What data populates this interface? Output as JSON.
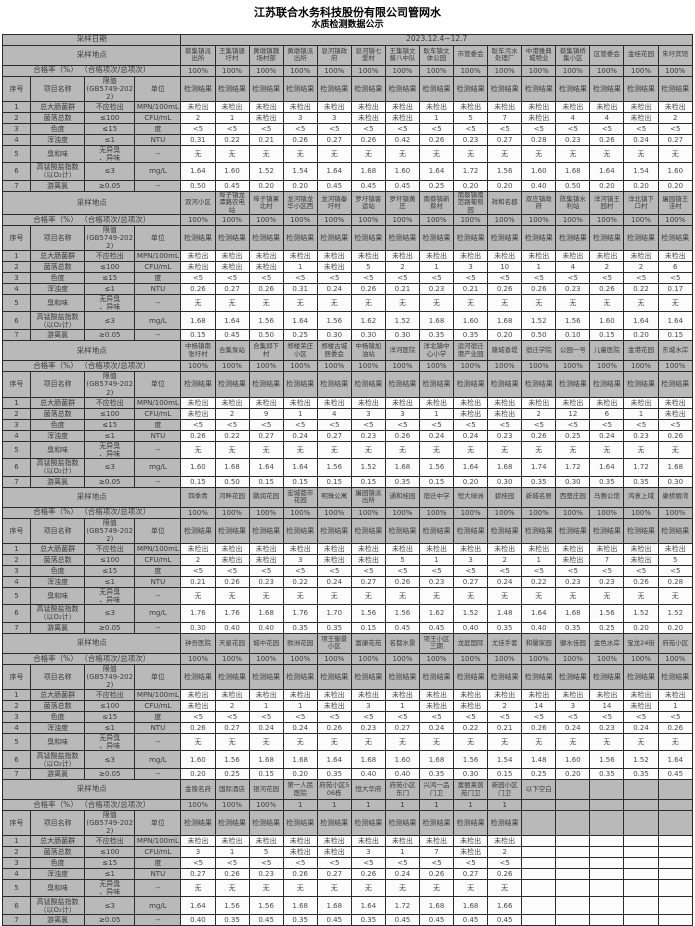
{
  "title_line1": "江苏联合水务科技股份有限公司管网水",
  "title_line2": "水质检测数据公示",
  "labels": {
    "sample_date": "采样日期",
    "sample_date_value": "2023.12.4~12.7",
    "sample_location": "采样地点",
    "pass_rate": "合格率（%） （合格项次/总项次）",
    "col_no": "序号",
    "col_item": "项目名称",
    "col_limit": "限值\n(GB5749-2022)",
    "col_unit": "单位",
    "result_header": "检测结果"
  },
  "parameters": [
    {
      "no": "1",
      "name": "总大肠菌群",
      "limit": "不应检出",
      "unit": "MPN/100mL"
    },
    {
      "no": "2",
      "name": "菌落总数",
      "limit": "≤100",
      "unit": "CFU/mL"
    },
    {
      "no": "3",
      "name": "色度",
      "limit": "≤15",
      "unit": "度"
    },
    {
      "no": "4",
      "name": "浑浊度",
      "limit": "≤1",
      "unit": "NTU"
    },
    {
      "no": "5",
      "name": "臭和味",
      "limit": "无异臭\n、异味",
      "unit": "--"
    },
    {
      "no": "6",
      "name": "高锰酸盐指数\n（以O₂计）",
      "limit": "≤3",
      "unit": "mg/L"
    },
    {
      "no": "7",
      "name": "游离氯",
      "limit": "≥0.05",
      "unit": "--"
    }
  ],
  "blocks": [
    {
      "locations": [
        "蔡集镇派出所",
        "王集镇唐圩村",
        "黄墩镇魏场村部",
        "黄墩镇派出所",
        "皂河镇政府",
        "皂河镇七堡村",
        "王集镇文督八中队",
        "耿车镇文体公园",
        "市管委会",
        "耿车污水处理厂",
        "中港雅典城物业",
        "蔡集镇桥集小区",
        "区管委会",
        "金桂花园",
        "朱圩宾馆"
      ],
      "pass_rates": [
        "100%",
        "100%",
        "100%",
        "100%",
        "100%",
        "100%",
        "100%",
        "100%",
        "100%",
        "100%",
        "100%",
        "100%",
        "100%",
        "100%",
        "100%"
      ],
      "result_headers": [
        "检测结果",
        "检测结果",
        "检测结果",
        "检测结果",
        "检测结果",
        "检测结果",
        "检测结果",
        "检测结果",
        "检测结果",
        "检测结果",
        "检测结果",
        "检测结果",
        "检测结果",
        "检测结果",
        "检测结果"
      ],
      "rows": [
        [
          "未检出",
          "未检出",
          "未检出",
          "未检出",
          "未检出",
          "未检出",
          "未检出",
          "未检出",
          "未检出",
          "未检出",
          "未检出",
          "未检出",
          "未检出",
          "未检出",
          "未检出"
        ],
        [
          "2",
          "1",
          "未检出",
          "3",
          "3",
          "未检出",
          "未检出",
          "1",
          "5",
          "7",
          "未检出",
          "4",
          "4",
          "未检出",
          "2"
        ],
        [
          "<5",
          "<5",
          "<5",
          "<5",
          "<5",
          "<5",
          "<5",
          "<5",
          "<5",
          "<5",
          "<5",
          "<5",
          "<5",
          "<5",
          "<5"
        ],
        [
          "0.31",
          "0.22",
          "0.21",
          "0.26",
          "0.27",
          "0.26",
          "0.42",
          "0.26",
          "0.23",
          "0.27",
          "0.28",
          "0.23",
          "0.26",
          "0.24",
          "0.27"
        ],
        [
          "无",
          "无",
          "无",
          "无",
          "无",
          "无",
          "无",
          "无",
          "无",
          "无",
          "无",
          "无",
          "无",
          "无",
          "无"
        ],
        [
          "1.64",
          "1.60",
          "1.52",
          "1.54",
          "1.64",
          "1.68",
          "1.60",
          "1.64",
          "1.72",
          "1.56",
          "1.60",
          "1.68",
          "1.64",
          "1.54",
          "1.60"
        ],
        [
          "0.50",
          "0.45",
          "0.20",
          "0.20",
          "0.45",
          "0.45",
          "0.45",
          "0.25",
          "0.20",
          "0.20",
          "0.40",
          "0.50",
          "0.20",
          "0.20",
          "0.20"
        ]
      ]
    },
    {
      "locations": [
        "双河小区",
        "埠子镇龙潭路农电站",
        "埠子镇果北村",
        "龙河镇龙华小区西",
        "龙河镇秦圩村",
        "罗圩镇客运站",
        "罗圩镇黄庄",
        "南蔡镇新蔡村",
        "南蔡镇南范路葡萄园",
        "祥和名郡",
        "双庄镇政府",
        "陈集镇水利站",
        "洋河镇王园村",
        "洋北镇下口村",
        "屠园镇王洼村"
      ],
      "pass_rates": [
        "100%",
        "100%",
        "100%",
        "100%",
        "100%",
        "100%",
        "100%",
        "100%",
        "100%",
        "100%",
        "100%",
        "100%",
        "100%",
        "100%",
        "100%"
      ],
      "result_headers": [
        "检测结果",
        "检测结果",
        "检测结果",
        "检测结果",
        "检测结果",
        "检测结果",
        "检测结果",
        "检测结果",
        "检测结果",
        "检测结果",
        "检测结果",
        "检测结果",
        "检测结果",
        "检测结果",
        "检测结果"
      ],
      "rows": [
        [
          "未检出",
          "未检出",
          "未检出",
          "未检出",
          "未检出",
          "未检出",
          "未检出",
          "未检出",
          "未检出",
          "未检出",
          "未检出",
          "未检出",
          "未检出",
          "未检出",
          "未检出"
        ],
        [
          "未检出",
          "未检出",
          "未检出",
          "1",
          "未检出",
          "5",
          "2",
          "1",
          "3",
          "10",
          "1",
          "4",
          "2",
          "2",
          "6"
        ],
        [
          "<5",
          "<5",
          "<5",
          "<5",
          "<5",
          "<5",
          "<5",
          "<5",
          "<5",
          "<5",
          "<5",
          "<5",
          "<5",
          "<5",
          "<5"
        ],
        [
          "0.26",
          "0.27",
          "0.26",
          "0.31",
          "0.24",
          "0.26",
          "0.21",
          "0.23",
          "0.21",
          "0.26",
          "0.26",
          "0.23",
          "0.26",
          "0.22",
          "0.17"
        ],
        [
          "无",
          "无",
          "无",
          "无",
          "无",
          "无",
          "无",
          "无",
          "无",
          "无",
          "无",
          "无",
          "无",
          "无",
          "无"
        ],
        [
          "1.68",
          "1.64",
          "1.56",
          "1.64",
          "1.56",
          "1.62",
          "1.52",
          "1.68",
          "1.60",
          "1.68",
          "1.52",
          "1.56",
          "1.60",
          "1.64",
          "1.64"
        ],
        [
          "0.15",
          "0.45",
          "0.50",
          "0.25",
          "0.30",
          "0.30",
          "0.30",
          "0.35",
          "0.35",
          "0.20",
          "0.50",
          "0.10",
          "0.15",
          "0.20",
          "0.15"
        ]
      ]
    },
    {
      "locations": [
        "中杨镇南张圩村",
        "合集泵站",
        "合集邱下村",
        "郑楼荣庄小区",
        "郑楼古城居委会",
        "中杨镇加油站",
        "洋河医院",
        "洋北镇中心小学",
        "运河宿迁港产业园",
        "隆城香堤",
        "宿迁学院",
        "公园一号",
        "儿童医院",
        "金港花园",
        "东城水岸"
      ],
      "pass_rates": [
        "100%",
        "100%",
        "100%",
        "100%",
        "100%",
        "100%",
        "100%",
        "100%",
        "100%",
        "100%",
        "100%",
        "100%",
        "100%",
        "100%",
        "100%"
      ],
      "result_headers": [
        "检测结果",
        "检测结果",
        "检测结果",
        "检测结果",
        "检测结果",
        "检测结果",
        "检测结果",
        "检测结果",
        "检测结果",
        "检测结果",
        "检测结果",
        "检测结果",
        "检测结果",
        "检测结果",
        "检测结果"
      ],
      "rows": [
        [
          "未检出",
          "未检出",
          "未检出",
          "未检出",
          "未检出",
          "未检出",
          "未检出",
          "未检出",
          "未检出",
          "未检出",
          "未检出",
          "未检出",
          "未检出",
          "未检出",
          "未检出"
        ],
        [
          "未检出",
          "2",
          "9",
          "1",
          "4",
          "3",
          "3",
          "1",
          "未检出",
          "未检出",
          "2",
          "12",
          "6",
          "1",
          "未检出"
        ],
        [
          "<5",
          "<5",
          "<5",
          "<5",
          "<5",
          "<5",
          "<5",
          "<5",
          "<5",
          "<5",
          "<5",
          "<5",
          "<5",
          "<5",
          "<5"
        ],
        [
          "0.26",
          "0.22",
          "0.27",
          "0.24",
          "0.27",
          "0.23",
          "0.26",
          "0.24",
          "0.24",
          "0.23",
          "0.26",
          "0.25",
          "0.24",
          "0.23",
          "0.26"
        ],
        [
          "无",
          "无",
          "无",
          "无",
          "无",
          "无",
          "无",
          "无",
          "无",
          "无",
          "无",
          "无",
          "无",
          "无",
          "无"
        ],
        [
          "1.60",
          "1.68",
          "1.64",
          "1.64",
          "1.56",
          "1.52",
          "1.68",
          "1.56",
          "1.64",
          "1.68",
          "1.74",
          "1.72",
          "1.64",
          "1.72",
          "1.68"
        ],
        [
          "0.15",
          "0.50",
          "0.15",
          "0.15",
          "0.15",
          "0.15",
          "0.35",
          "0.15",
          "0.20",
          "0.30",
          "0.35",
          "0.30",
          "0.35",
          "0.35",
          "0.30"
        ]
      ]
    },
    {
      "locations": [
        "四季青",
        "河畔花园",
        "鹏润花园",
        "宏城都市花园",
        "明珠公寓",
        "屠园镇派出所",
        "通和桂园",
        "宿迁中学",
        "恒大绿洲",
        "碧桂园",
        "新城名居",
        "西楚庄园",
        "马赛公馆",
        "鸿意上域",
        "康桥丽湾"
      ],
      "pass_rates": [
        "100%",
        "100%",
        "100%",
        "100%",
        "100%",
        "100%",
        "100%",
        "100%",
        "100%",
        "100%",
        "100%",
        "100%",
        "100%",
        "100%",
        "100%"
      ],
      "result_headers": [
        "检测结果",
        "检测结果",
        "检测结果",
        "检测结果",
        "检测结果",
        "检测结果",
        "检测结果",
        "检测结果",
        "检测结果",
        "检测结果",
        "检测结果",
        "检测结果",
        "检测结果",
        "检测结果",
        "检测结果"
      ],
      "rows": [
        [
          "未检出",
          "未检出",
          "未检出",
          "未检出",
          "未检出",
          "未检出",
          "未检出",
          "未检出",
          "未检出",
          "未检出",
          "未检出",
          "未检出",
          "未检出",
          "未检出",
          "未检出"
        ],
        [
          "2",
          "未检出",
          "未检出",
          "3",
          "未检出",
          "未检出",
          "5",
          "1",
          "3",
          "2",
          "1",
          "未检出",
          "7",
          "未检出",
          "5"
        ],
        [
          "<5",
          "<5",
          "<5",
          "<5",
          "<5",
          "<5",
          "<5",
          "<5",
          "<5",
          "<5",
          "<5",
          "<5",
          "<5",
          "<5",
          "<5"
        ],
        [
          "0.21",
          "0.26",
          "0.23",
          "0.22",
          "0.24",
          "0.27",
          "0.26",
          "0.23",
          "0.27",
          "0.24",
          "0.22",
          "0.23",
          "0.23",
          "0.26",
          "0.28"
        ],
        [
          "无",
          "无",
          "无",
          "无",
          "无",
          "无",
          "无",
          "无",
          "无",
          "无",
          "无",
          "无",
          "无",
          "无",
          "无"
        ],
        [
          "1.76",
          "1.76",
          "1.68",
          "1.76",
          "1.70",
          "1.56",
          "1.56",
          "1.62",
          "1.52",
          "1.48",
          "1.64",
          "1.68",
          "1.56",
          "1.52",
          "1.52"
        ],
        [
          "0.30",
          "0.40",
          "0.40",
          "0.35",
          "0.35",
          "0.15",
          "0.45",
          "0.45",
          "0.40",
          "0.35",
          "0.40",
          "0.35",
          "0.25",
          "0.20",
          "0.20"
        ]
      ]
    },
    {
      "locations": [
        "钟吾医院",
        "天星花园",
        "城中花园",
        "欧洲花园",
        "项王御景小区",
        "富康花苑",
        "名都水景",
        "项王小区三期",
        "龙庭国际",
        "尤佳手套",
        "和馨家园",
        "御水佳园",
        "金色水岸",
        "宝龙24街",
        "府苑小区"
      ],
      "pass_rates": [
        "100%",
        "100%",
        "100%",
        "100%",
        "100%",
        "100%",
        "100%",
        "100%",
        "100%",
        "100%",
        "100%",
        "100%",
        "100%",
        "100%",
        "100%"
      ],
      "result_headers": [
        "检测结果",
        "检测结果",
        "检测结果",
        "检测结果",
        "检测结果",
        "检测结果",
        "检测结果",
        "检测结果",
        "检测结果",
        "检测结果",
        "检测结果",
        "检测结果",
        "检测结果",
        "检测结果",
        "检测结果"
      ],
      "rows": [
        [
          "未检出",
          "未检出",
          "未检出",
          "未检出",
          "未检出",
          "未检出",
          "未检出",
          "未检出",
          "未检出",
          "未检出",
          "未检出",
          "未检出",
          "未检出",
          "未检出",
          "未检出"
        ],
        [
          "未检出",
          "2",
          "1",
          "1",
          "未检出",
          "3",
          "1",
          "未检出",
          "未检出",
          "2",
          "14",
          "3",
          "14",
          "未检出",
          "1"
        ],
        [
          "<5",
          "<5",
          "<5",
          "<5",
          "<5",
          "<5",
          "<5",
          "<5",
          "<5",
          "<5",
          "<5",
          "<5",
          "<5",
          "<5",
          "<5"
        ],
        [
          "0.26",
          "0.27",
          "0.24",
          "0.24",
          "0.26",
          "0.23",
          "0.27",
          "0.24",
          "0.22",
          "0.21",
          "0.26",
          "0.24",
          "0.23",
          "0.24",
          "0.26"
        ],
        [
          "无",
          "无",
          "无",
          "无",
          "无",
          "无",
          "无",
          "无",
          "无",
          "无",
          "无",
          "无",
          "无",
          "无",
          "无"
        ],
        [
          "1.60",
          "1.56",
          "1.68",
          "1.68",
          "1.64",
          "1.68",
          "1.60",
          "1.68",
          "1.56",
          "1.54",
          "1.48",
          "1.60",
          "1.56",
          "1.52",
          "1.64"
        ],
        [
          "0.20",
          "0.25",
          "0.15",
          "0.20",
          "0.35",
          "0.40",
          "0.40",
          "0.35",
          "0.30",
          "0.15",
          "0.25",
          "0.20",
          "0.35",
          "0.35",
          "0.45"
        ]
      ]
    },
    {
      "locations": [
        "金陵名府",
        "国际酒店",
        "银河花园",
        "第一人民医院",
        "府苑小区506栋",
        "恒大华府",
        "府苑小区东门",
        "兴鸿一品门卫",
        "富丽莱茵苑门卫",
        "新园小区门卫",
        "以下空白",
        "",
        "",
        "",
        ""
      ],
      "pass_rates": [
        "100%",
        "100%",
        "100%",
        "1",
        "1",
        "1",
        "1",
        "1",
        "1",
        "1",
        "",
        "",
        "",
        "",
        ""
      ],
      "result_headers": [
        "检测结果",
        "检测结果",
        "检测结果",
        "检测结果",
        "检测结果",
        "检测结果",
        "检测结果",
        "检测结果",
        "检测结果",
        "检测结果",
        "",
        "",
        "",
        "",
        ""
      ],
      "rows": [
        [
          "未检出",
          "未检出",
          "未检出",
          "未检出",
          "未检出",
          "未检出",
          "未检出",
          "未检出",
          "未检出",
          "未检出",
          "",
          "",
          "",
          "",
          ""
        ],
        [
          "3",
          "1",
          "5",
          "未检出",
          "未检出",
          "3",
          "1",
          "7",
          "未检出",
          "2",
          "",
          "",
          "",
          "",
          ""
        ],
        [
          "<5",
          "<5",
          "<5",
          "<5",
          "<5",
          "<5",
          "<5",
          "<5",
          "<5",
          "<5",
          "",
          "",
          "",
          "",
          ""
        ],
        [
          "0.27",
          "0.26",
          "0.23",
          "0.26",
          "0.27",
          "0.26",
          "0.24",
          "0.26",
          "0.27",
          "0.26",
          "",
          "",
          "",
          "",
          ""
        ],
        [
          "无",
          "无",
          "无",
          "无",
          "无",
          "无",
          "无",
          "无",
          "无",
          "无",
          "",
          "",
          "",
          "",
          ""
        ],
        [
          "1.64",
          "1.56",
          "1.56",
          "1.68",
          "1.68",
          "1.64",
          "1.72",
          "1.68",
          "1.68",
          "1.66",
          "",
          "",
          "",
          "",
          ""
        ],
        [
          "0.40",
          "0.35",
          "0.45",
          "0.35",
          "0.45",
          "0.35",
          "0.45",
          "0.45",
          "0.45",
          "0.45",
          "",
          "",
          "",
          "",
          ""
        ]
      ]
    }
  ]
}
